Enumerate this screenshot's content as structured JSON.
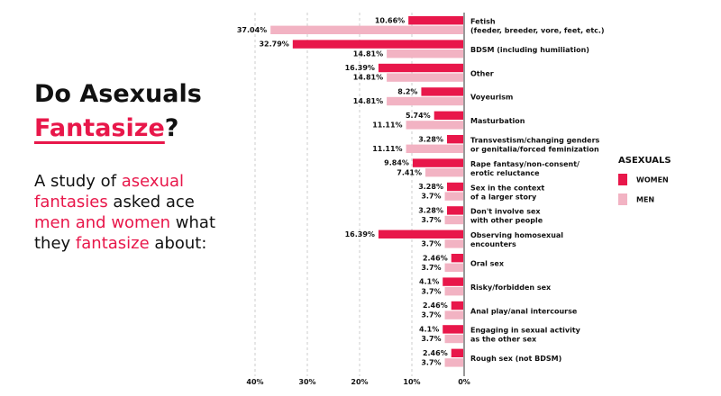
{
  "headline": {
    "line1": "Do Asexuals",
    "accent": "Fantasize",
    "suffix": "?"
  },
  "blurb": {
    "p1": "A study of ",
    "a1": "asexual fantasies",
    "p2": " asked ace ",
    "a2": "men and women",
    "p3": " what they ",
    "a3": "fantasize",
    "p4": " about:"
  },
  "colors": {
    "women": "#e8174a",
    "men": "#f2b3c3",
    "accent": "#e8174a",
    "grid": "#cccccc",
    "axis": "#999999"
  },
  "chart_data": {
    "type": "bar",
    "orientation": "horizontal",
    "xlim": [
      40,
      0
    ],
    "xticks": [
      "40%",
      "30%",
      "20%",
      "10%",
      "0%"
    ],
    "grid": true,
    "legend": {
      "title": "ASEXUALS",
      "placement": "right"
    },
    "categories": [
      {
        "lines": [
          "Fetish",
          "(feeder, breeder, vore, feet, etc.)"
        ]
      },
      {
        "lines": [
          "BDSM (including humiliation)"
        ]
      },
      {
        "lines": [
          "Other"
        ]
      },
      {
        "lines": [
          "Voyeurism"
        ]
      },
      {
        "lines": [
          "Masturbation"
        ]
      },
      {
        "lines": [
          "Transvestism/changing genders",
          "or genitalia/forced feminization"
        ]
      },
      {
        "lines": [
          "Rape fantasy/non-consent/",
          "erotic reluctance"
        ]
      },
      {
        "lines": [
          "Sex in the context",
          "of a larger story"
        ]
      },
      {
        "lines": [
          "Don't involve sex",
          "with other people"
        ]
      },
      {
        "lines": [
          "Observing homosexual",
          "encounters"
        ]
      },
      {
        "lines": [
          "Oral sex"
        ]
      },
      {
        "lines": [
          "Risky/forbidden sex"
        ]
      },
      {
        "lines": [
          "Anal play/anal intercourse"
        ]
      },
      {
        "lines": [
          "Engaging in sexual activity",
          "as the other sex"
        ]
      },
      {
        "lines": [
          "Rough sex (not BDSM)"
        ]
      }
    ],
    "series": [
      {
        "name": "WOMEN",
        "values": [
          10.66,
          32.79,
          16.39,
          8.2,
          5.74,
          3.28,
          9.84,
          3.28,
          3.28,
          16.39,
          2.46,
          4.1,
          2.46,
          4.1,
          2.46
        ],
        "labels": [
          "10.66%",
          "32.79%",
          "16.39%",
          "8.2%",
          "5.74%",
          "3.28%",
          "9.84%",
          "3.28%",
          "3.28%",
          "16.39%",
          "2.46%",
          "4.1%",
          "2.46%",
          "4.1%",
          "2.46%"
        ]
      },
      {
        "name": "MEN",
        "values": [
          37.04,
          14.81,
          14.81,
          14.81,
          11.11,
          11.11,
          7.41,
          3.7,
          3.7,
          3.7,
          3.7,
          3.7,
          3.7,
          3.7,
          3.7
        ],
        "labels": [
          "37.04%",
          "14.81%",
          "14.81%",
          "14.81%",
          "11.11%",
          "11.11%",
          "7.41%",
          "3.7%",
          "3.7%",
          "3.7%",
          "3.7%",
          "3.7%",
          "3.7%",
          "3.7%",
          "3.7%"
        ]
      }
    ]
  }
}
